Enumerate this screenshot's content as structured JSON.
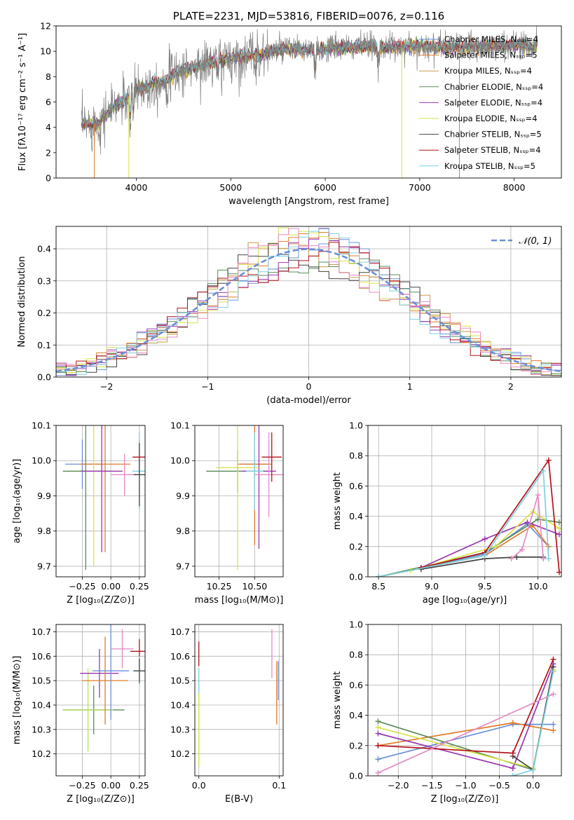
{
  "figure": {
    "colors": {
      "Chabrier MILES": "#6a8fd8",
      "Salpeter MILES": "#e07b27",
      "Kroupa MILES": "#c89a4c",
      "Chabrier ELODIE": "#5a8a5a",
      "Salpeter ELODIE": "#9a37b0",
      "Kroupa ELODIE": "#d8e34a",
      "Chabrier STELIB": "#444444",
      "Salpeter STELIB": "#b3121a",
      "Kroupa STELIB": "#7fd1de",
      "extra_green": "#b7e05a",
      "extra_pink": "#e68ac2",
      "gauss": "#6a8fd8"
    }
  },
  "chart_data": [
    {
      "id": "spectrum",
      "type": "line",
      "title": "PLATE=2231, MJD=53816, FIBERID=0076, z=0.116",
      "xlabel": "wavelength [Angstrom, rest frame]",
      "ylabel": "Flux [fλ10⁻¹⁷ erg cm⁻² s⁻¹ A⁻¹]",
      "xlim": [
        3150,
        8500
      ],
      "ylim": [
        0,
        12
      ],
      "xticks": [
        "4000",
        "5000",
        "6000",
        "7000",
        "8000"
      ],
      "yticks": [
        "0",
        "2",
        "4",
        "6",
        "8",
        "10",
        "12"
      ],
      "legend_position": "right",
      "legend": [
        "Chabrier MILES, Nₛₛₚ=4",
        "Salpeter MILES, Nₛₛₚ=5",
        "Kroupa MILES, Nₛₛₚ=4",
        "Chabrier ELODIE, Nₛₛₚ=4",
        "Salpeter ELODIE, Nₛₛₚ=4",
        "Kroupa ELODIE, Nₛₛₚ=4",
        "Chabrier STELIB, Nₛₛₚ=5",
        "Salpeter STELIB, Nₛₛₚ=4",
        "Kroupa STELIB, Nₛₛₚ=5"
      ],
      "continuum_points": [
        [
          3400,
          4.2
        ],
        [
          3600,
          4.3
        ],
        [
          3700,
          5.2
        ],
        [
          3800,
          5.8
        ],
        [
          3900,
          6.3
        ],
        [
          4000,
          7.0
        ],
        [
          4100,
          7.2
        ],
        [
          4200,
          7.5
        ],
        [
          4300,
          7.6
        ],
        [
          4400,
          8.2
        ],
        [
          4500,
          8.5
        ],
        [
          4700,
          8.9
        ],
        [
          4900,
          9.3
        ],
        [
          5100,
          9.5
        ],
        [
          5300,
          9.7
        ],
        [
          5500,
          10.1
        ],
        [
          5700,
          10.2
        ],
        [
          5900,
          10.0
        ],
        [
          6100,
          10.3
        ],
        [
          6300,
          10.3
        ],
        [
          6500,
          10.4
        ],
        [
          6700,
          10.3
        ],
        [
          6900,
          10.4
        ],
        [
          7100,
          10.4
        ],
        [
          7300,
          10.3
        ],
        [
          7500,
          10.3
        ],
        [
          7800,
          10.4
        ],
        [
          8000,
          10.5
        ],
        [
          8200,
          10.4
        ]
      ]
    },
    {
      "id": "residuals",
      "type": "histogram",
      "xlabel": "(data-model)/error",
      "ylabel": "Normed distribution",
      "xlim": [
        -2.5,
        2.5
      ],
      "ylim": [
        0,
        0.47
      ],
      "xticks": [
        "−2",
        "−1",
        "0",
        "1",
        "2"
      ],
      "yticks": [
        "0.0",
        "0.1",
        "0.2",
        "0.3",
        "0.4"
      ],
      "grid": true,
      "legend_position": "top-right",
      "legend": [
        "𝒩(0, 1)"
      ],
      "gaussian": {
        "mean": 0,
        "sigma": 1
      }
    },
    {
      "id": "age-vs-Z",
      "type": "scatter",
      "xlabel": "Z [log₁₀(Z/Z⊙)]",
      "ylabel": "age  [log₁₀(age/yr)]",
      "xlim": [
        -0.48,
        0.3
      ],
      "ylim": [
        9.67,
        10.1
      ],
      "xticks": [
        "−0.25",
        "0.00",
        "0.25"
      ],
      "yticks": [
        "9.7",
        "9.8",
        "9.9",
        "10.0",
        "10.1"
      ],
      "grid": true,
      "points": [
        {
          "x": -0.25,
          "y": 9.99,
          "xerr": 0.15,
          "yerr": 0.07,
          "color": "#6a8fd8"
        },
        {
          "x": -0.05,
          "y": 9.99,
          "xerr": 0.22,
          "yerr": 0.25,
          "color": "#e07b27"
        },
        {
          "x": -0.15,
          "y": 9.97,
          "xerr": 0.26,
          "yerr": 0.27,
          "color": "#d8e34a"
        },
        {
          "x": -0.22,
          "y": 9.97,
          "xerr": 0.2,
          "yerr": 0.28,
          "color": "#5a8a5a"
        },
        {
          "x": -0.08,
          "y": 9.97,
          "xerr": 0.18,
          "yerr": 0.23,
          "color": "#9a37b0"
        },
        {
          "x": 0.12,
          "y": 9.96,
          "xerr": 0.12,
          "yerr": 0.06,
          "color": "#e68ac2"
        },
        {
          "x": 0.25,
          "y": 10.01,
          "xerr": 0.06,
          "yerr": 0.05,
          "color": "#b3121a"
        },
        {
          "x": 0.25,
          "y": 9.97,
          "xerr": 0.06,
          "yerr": 0.11,
          "color": "#7fd1de"
        },
        {
          "x": 0.25,
          "y": 9.96,
          "xerr": 0.05,
          "yerr": 0.09,
          "color": "#444444"
        }
      ]
    },
    {
      "id": "age-vs-mass",
      "type": "scatter",
      "xlabel": "mass [log₁₀(M/M⊙)]",
      "ylabel": "",
      "xlim": [
        10.08,
        10.7
      ],
      "ylim": [
        9.67,
        10.1
      ],
      "xticks": [
        "10.25",
        "10.50"
      ],
      "yticks": [
        "9.7",
        "9.8",
        "9.9",
        "10.0",
        "10.1"
      ],
      "grid": true,
      "points": [
        {
          "x": 10.38,
          "y": 9.97,
          "xerr": 0.22,
          "yerr": 0.06,
          "color": "#5a8a5a"
        },
        {
          "x": 10.5,
          "y": 9.99,
          "xerr": 0.1,
          "yerr": 0.04,
          "color": "#6a8fd8"
        },
        {
          "x": 10.5,
          "y": 9.99,
          "xerr": 0.12,
          "yerr": 0.23,
          "color": "#e07b27"
        },
        {
          "x": 10.53,
          "y": 9.97,
          "xerr": 0.12,
          "yerr": 0.22,
          "color": "#9a37b0"
        },
        {
          "x": 10.38,
          "y": 9.98,
          "xerr": 0.15,
          "yerr": 0.29,
          "color": "#d8e34a"
        },
        {
          "x": 10.6,
          "y": 9.96,
          "xerr": 0.1,
          "yerr": 0.12,
          "color": "#e68ac2"
        },
        {
          "x": 10.62,
          "y": 10.01,
          "xerr": 0.07,
          "yerr": 0.07,
          "color": "#b3121a"
        },
        {
          "x": 10.5,
          "y": 9.97,
          "xerr": 0.06,
          "yerr": 0.11,
          "color": "#7fd1de"
        }
      ]
    },
    {
      "id": "weight-vs-age",
      "type": "line",
      "xlabel": "age  [log₁₀(age/yr)]",
      "ylabel": "mass weight",
      "xlim": [
        8.4,
        10.22
      ],
      "ylim": [
        0,
        1
      ],
      "xticks": [
        "8.5",
        "9.0",
        "9.5",
        "10.0"
      ],
      "yticks": [
        "0.0",
        "0.2",
        "0.4",
        "0.6",
        "0.8",
        "1.0"
      ],
      "grid": true,
      "series": [
        {
          "color": "#6a8fd8",
          "x": [
            8.5,
            9.5,
            9.9,
            10.1
          ],
          "y": [
            0.0,
            0.15,
            0.35,
            0.2
          ]
        },
        {
          "color": "#e07b27",
          "x": [
            8.5,
            9.5,
            9.95,
            10.1
          ],
          "y": [
            0.0,
            0.14,
            0.34,
            0.2
          ]
        },
        {
          "color": "#5a8a5a",
          "x": [
            8.5,
            9.5,
            10.0,
            10.2
          ],
          "y": [
            0.0,
            0.16,
            0.38,
            0.36
          ]
        },
        {
          "color": "#9a37b0",
          "x": [
            8.9,
            9.5,
            9.9,
            10.2
          ],
          "y": [
            0.06,
            0.25,
            0.36,
            0.28
          ]
        },
        {
          "color": "#d8e34a",
          "x": [
            8.8,
            9.6,
            9.95,
            10.2
          ],
          "y": [
            0.04,
            0.2,
            0.43,
            0.32
          ]
        },
        {
          "color": "#444444",
          "x": [
            8.9,
            9.5,
            9.8,
            10.05
          ],
          "y": [
            0.05,
            0.12,
            0.13,
            0.13
          ]
        },
        {
          "color": "#b3121a",
          "x": [
            8.9,
            9.5,
            10.1,
            10.2
          ],
          "y": [
            0.06,
            0.16,
            0.77,
            0.03
          ]
        },
        {
          "color": "#e68ac2",
          "x": [
            9.75,
            9.85,
            10.0,
            10.05
          ],
          "y": [
            0.12,
            0.18,
            0.54,
            0.12
          ]
        },
        {
          "color": "#7fd1de",
          "x": [
            8.5,
            9.5,
            10.05,
            10.1
          ],
          "y": [
            0.0,
            0.14,
            0.7,
            0.12
          ]
        }
      ]
    },
    {
      "id": "mass-vs-Z",
      "type": "scatter",
      "xlabel": "Z [log₁₀(Z/Z⊙)]",
      "ylabel": "mass [log₁₀(M/M⊙)]",
      "xlim": [
        -0.48,
        0.3
      ],
      "ylim": [
        10.11,
        10.73
      ],
      "xticks": [
        "−0.25",
        "0.00",
        "0.25"
      ],
      "yticks": [
        "10.2",
        "10.3",
        "10.4",
        "10.5",
        "10.6",
        "10.7"
      ],
      "grid": true,
      "points": [
        {
          "x": -0.15,
          "y": 10.38,
          "xerr": 0.27,
          "yerr": 0.1,
          "color": "#5a8a5a"
        },
        {
          "x": -0.2,
          "y": 10.38,
          "xerr": 0.22,
          "yerr": 0.17,
          "color": "#b7e05a"
        },
        {
          "x": -0.1,
          "y": 10.53,
          "xerr": 0.17,
          "yerr": 0.1,
          "color": "#9a37b0"
        },
        {
          "x": -0.05,
          "y": 10.5,
          "xerr": 0.2,
          "yerr": 0.18,
          "color": "#e07b27"
        },
        {
          "x": 0.0,
          "y": 10.54,
          "xerr": 0.16,
          "yerr": 0.2,
          "color": "#6a8fd8"
        },
        {
          "x": 0.1,
          "y": 10.63,
          "xerr": 0.1,
          "yerr": 0.08,
          "color": "#e68ac2"
        },
        {
          "x": 0.25,
          "y": 10.62,
          "xerr": 0.08,
          "yerr": 0.05,
          "color": "#b3121a"
        },
        {
          "x": 0.25,
          "y": 10.54,
          "xerr": 0.06,
          "yerr": 0.06,
          "color": "#7fd1de"
        },
        {
          "x": 0.25,
          "y": 10.54,
          "xerr": 0.05,
          "yerr": 0.05,
          "color": "#444444"
        }
      ]
    },
    {
      "id": "mass-vs-EBV",
      "type": "scatter",
      "xlabel": "E(B-V)",
      "ylabel": "",
      "xlim": [
        -0.005,
        0.105
      ],
      "ylim": [
        10.11,
        10.73
      ],
      "xticks": [
        "0.0",
        "0.1"
      ],
      "yticks": [
        "10.2",
        "10.3",
        "10.4",
        "10.5",
        "10.6",
        "10.7"
      ],
      "grid": true,
      "points": [
        {
          "x": 0.0,
          "y": 10.61,
          "xerr": 0.0,
          "yerr": 0.05,
          "color": "#b3121a"
        },
        {
          "x": 0.0,
          "y": 10.35,
          "xerr": 0.0,
          "yerr": 0.2,
          "color": "#7fd1de"
        },
        {
          "x": 0.0,
          "y": 10.3,
          "xerr": 0.0,
          "yerr": 0.15,
          "color": "#d8e34a"
        },
        {
          "x": 0.091,
          "y": 10.61,
          "xerr": 0.0,
          "yerr": 0.1,
          "color": "#e68ac2"
        },
        {
          "x": 0.097,
          "y": 10.45,
          "xerr": 0.0,
          "yerr": 0.13,
          "color": "#e07b27"
        },
        {
          "x": 0.099,
          "y": 10.5,
          "xerr": 0.0,
          "yerr": 0.08,
          "color": "#6a8fd8"
        }
      ]
    },
    {
      "id": "weight-vs-Z",
      "type": "line",
      "xlabel": "Z [log₁₀(Z/Z⊙)]",
      "ylabel": "mass weight",
      "xlim": [
        -2.45,
        0.42
      ],
      "ylim": [
        0,
        1
      ],
      "xticks": [
        "−2.0",
        "−1.5",
        "−1.0",
        "−0.5",
        "0.0"
      ],
      "yticks": [
        "0.0",
        "0.2",
        "0.4",
        "0.6",
        "0.8",
        "1.0"
      ],
      "grid": true,
      "series": [
        {
          "color": "#6a8fd8",
          "x": [
            -2.3,
            -0.3,
            0.3
          ],
          "y": [
            0.11,
            0.34,
            0.34
          ]
        },
        {
          "color": "#e07b27",
          "x": [
            -2.3,
            -0.3,
            0.3
          ],
          "y": [
            0.2,
            0.35,
            0.3
          ]
        },
        {
          "color": "#5a8a5a",
          "x": [
            -2.3,
            0.0,
            0.3
          ],
          "y": [
            0.36,
            0.04,
            0.7
          ]
        },
        {
          "color": "#9a37b0",
          "x": [
            -2.3,
            -0.3,
            0.3
          ],
          "y": [
            0.28,
            0.05,
            0.74
          ]
        },
        {
          "color": "#d8e34a",
          "x": [
            -2.3,
            0.0,
            0.3
          ],
          "y": [
            0.32,
            0.05,
            0.7
          ]
        },
        {
          "color": "#444444",
          "x": [
            -0.3,
            0.0,
            0.3
          ],
          "y": [
            0.13,
            0.04,
            0.72
          ]
        },
        {
          "color": "#b3121a",
          "x": [
            -2.3,
            -0.3,
            0.3
          ],
          "y": [
            0.2,
            0.15,
            0.77
          ]
        },
        {
          "color": "#e68ac2",
          "x": [
            -2.3,
            0.3
          ],
          "y": [
            0.02,
            0.54
          ]
        },
        {
          "color": "#7fd1de",
          "x": [
            -0.3,
            0.0,
            0.3
          ],
          "y": [
            0.0,
            0.04,
            0.69
          ]
        }
      ]
    }
  ]
}
